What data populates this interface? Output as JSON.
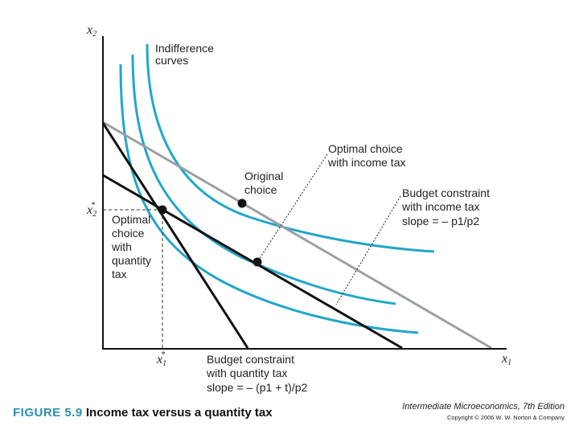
{
  "axes": {
    "y_label": "x",
    "y_sub": "2",
    "x_label": "x",
    "x_sub": "1",
    "x2_star": "x",
    "x2_star_sub": "2",
    "x1_star": "x",
    "x1_star_sub": "1",
    "star": "*"
  },
  "labels": {
    "indifference_curves": [
      "Indifference",
      "curves"
    ],
    "optimal_income": [
      "Optimal choice",
      "with income tax"
    ],
    "original_choice": [
      "Original",
      "choice"
    ],
    "budget_income": [
      "Budget constraint",
      "with income tax",
      "slope = – p1/p2"
    ],
    "optimal_quantity": [
      "Optimal",
      "choice",
      "with",
      "quantity",
      "tax"
    ],
    "budget_quantity": [
      "Budget constraint",
      "with quantity tax",
      "slope = – (p1 + t)/p2"
    ]
  },
  "caption": {
    "figure": "FIGURE 5.9",
    "title": "Income tax versus a quantity tax"
  },
  "credit": {
    "book": "Intermediate Microeconomics, 7th Edition",
    "copyright": "Copyright © 2006 W. W. Norton & Company"
  },
  "colors": {
    "curve": "#21a7c9",
    "budget_income": "#9aa0a3",
    "budget_black": "#111111",
    "axis": "#111111"
  }
}
